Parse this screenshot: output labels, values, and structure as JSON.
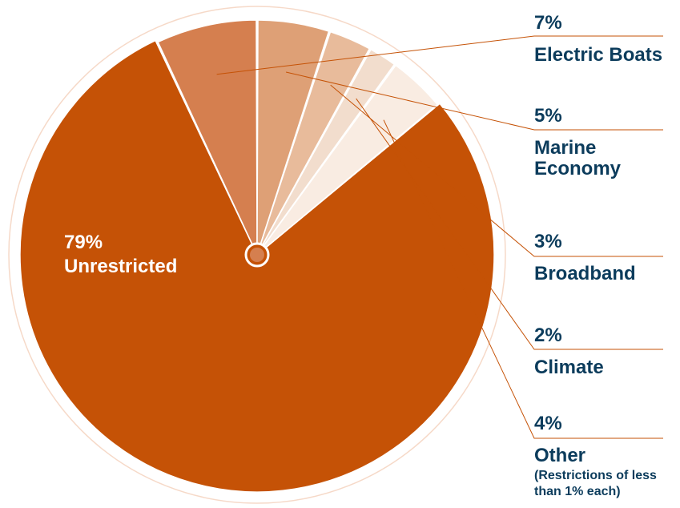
{
  "chart_data": {
    "type": "pie",
    "values": [
      79,
      7,
      5,
      3,
      2,
      4
    ],
    "slices": [
      {
        "pct_label": "79%",
        "label": "Unrestricted",
        "value": 79,
        "color": "#c55206"
      },
      {
        "pct_label": "7%",
        "label": "Electric Boats",
        "value": 7,
        "color": "#d57f4f"
      },
      {
        "pct_label": "5%",
        "label": "Marine Economy",
        "value": 5,
        "color": "#dea076"
      },
      {
        "pct_label": "3%",
        "label": "Broadband",
        "value": 3,
        "color": "#e8bb9b"
      },
      {
        "pct_label": "2%",
        "label": "Climate",
        "value": 2,
        "color": "#f2ddcd"
      },
      {
        "pct_label": "4%",
        "label": "Other",
        "note": "(Restrictions of less than 1% each)",
        "value": 4,
        "color": "#f9ece2"
      }
    ],
    "colors": {
      "label_text": "#0c3c5c",
      "leader_line": "#c55206",
      "outer_ring": "#f6d9c8"
    }
  }
}
